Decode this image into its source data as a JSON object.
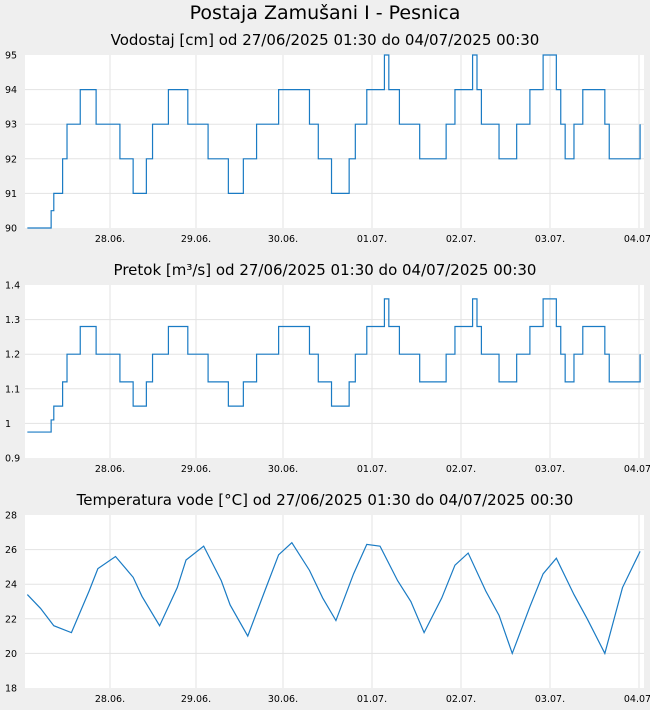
{
  "page": {
    "title": "Postaja Zamušani I - Pesnica"
  },
  "x_ticks": [
    "28.06.",
    "29.06.",
    "30.06.",
    "01.07.",
    "02.07.",
    "03.07.",
    "04.07."
  ],
  "chart_data": [
    {
      "type": "line",
      "title": "Vodostaj [cm] od 27/06/2025 01:30 do 04/07/2025 00:30",
      "xlabel": "",
      "ylabel": "",
      "ylim": [
        90,
        95
      ],
      "y_ticks": [
        "95",
        "94",
        "93",
        "92",
        "91",
        "90"
      ],
      "grid": true,
      "line_color": "#1a7bc4",
      "series": [
        {
          "x": [
            0,
            0.25,
            0.27,
            0.3,
            0.32,
            0.4,
            0.45,
            0.55,
            0.6,
            0.68,
            0.78,
            1.0,
            1.05,
            1.1,
            1.15,
            1.2,
            1.28,
            1.35,
            1.42,
            1.5,
            1.6,
            1.68,
            1.82,
            2.05,
            2.2,
            2.28,
            2.35,
            2.45,
            2.6,
            2.75,
            2.85,
            3.05,
            3.2,
            3.3,
            3.38,
            3.45,
            3.55,
            3.65,
            3.72,
            3.78,
            3.85,
            4.05,
            4.1,
            4.15,
            4.22,
            4.3,
            4.45,
            4.55,
            4.65,
            4.75,
            4.85,
            5.05,
            5.1,
            5.15,
            5.25,
            5.35,
            5.45,
            5.55,
            5.7,
            5.85,
            6.0,
            6.05,
            6.1,
            6.15,
            6.2,
            6.3,
            6.45,
            6.55,
            6.6,
            6.7,
            6.8,
            6.95
          ],
          "y": [
            90,
            90,
            90.5,
            91,
            91,
            92,
            93,
            93,
            94,
            94,
            93,
            93,
            92,
            92,
            92,
            91,
            91,
            92,
            93,
            93,
            94,
            94,
            93,
            92,
            92,
            91,
            91,
            92,
            93,
            93,
            94,
            94,
            93,
            92,
            92,
            91,
            91,
            92,
            93,
            93,
            94,
            95,
            94,
            94,
            93,
            93,
            92,
            92,
            92,
            93,
            94,
            95,
            94,
            93,
            93,
            92,
            92,
            93,
            94,
            95,
            94,
            93,
            92,
            92,
            93,
            94,
            94,
            93,
            92,
            92,
            92,
            93
          ]
        }
      ]
    },
    {
      "type": "line",
      "title": "Pretok [m³/s] od 27/06/2025 01:30 do 04/07/2025 00:30",
      "xlabel": "",
      "ylabel": "",
      "ylim": [
        0.9,
        1.4
      ],
      "y_ticks": [
        "1.4",
        "1.3",
        "1.2",
        "1.1",
        "1",
        "0.9"
      ],
      "grid": true,
      "line_color": "#1a7bc4",
      "series": [
        {
          "x": [
            0,
            0.25,
            0.27,
            0.3,
            0.32,
            0.4,
            0.45,
            0.55,
            0.6,
            0.68,
            0.78,
            1.0,
            1.05,
            1.1,
            1.15,
            1.2,
            1.28,
            1.35,
            1.42,
            1.5,
            1.6,
            1.68,
            1.82,
            2.05,
            2.2,
            2.28,
            2.35,
            2.45,
            2.6,
            2.75,
            2.85,
            3.05,
            3.2,
            3.3,
            3.38,
            3.45,
            3.55,
            3.65,
            3.72,
            3.78,
            3.85,
            4.05,
            4.1,
            4.15,
            4.22,
            4.3,
            4.45,
            4.55,
            4.65,
            4.75,
            4.85,
            5.05,
            5.1,
            5.15,
            5.25,
            5.35,
            5.45,
            5.55,
            5.7,
            5.85,
            6.0,
            6.05,
            6.1,
            6.15,
            6.2,
            6.3,
            6.45,
            6.55,
            6.6,
            6.7,
            6.8,
            6.95
          ],
          "y": [
            0.975,
            0.975,
            1.01,
            1.05,
            1.05,
            1.12,
            1.2,
            1.2,
            1.28,
            1.28,
            1.2,
            1.2,
            1.12,
            1.12,
            1.12,
            1.05,
            1.05,
            1.12,
            1.2,
            1.2,
            1.28,
            1.28,
            1.2,
            1.12,
            1.12,
            1.05,
            1.05,
            1.12,
            1.2,
            1.2,
            1.28,
            1.28,
            1.2,
            1.12,
            1.12,
            1.05,
            1.05,
            1.12,
            1.2,
            1.2,
            1.28,
            1.36,
            1.28,
            1.28,
            1.2,
            1.2,
            1.12,
            1.12,
            1.12,
            1.2,
            1.28,
            1.36,
            1.28,
            1.2,
            1.2,
            1.12,
            1.12,
            1.2,
            1.28,
            1.36,
            1.28,
            1.2,
            1.12,
            1.12,
            1.2,
            1.28,
            1.28,
            1.2,
            1.12,
            1.12,
            1.12,
            1.2
          ]
        }
      ]
    },
    {
      "type": "line",
      "title": "Temperatura vode [°C] od 27/06/2025 01:30 do 04/07/2025 00:30",
      "xlabel": "",
      "ylabel": "",
      "ylim": [
        18,
        28
      ],
      "y_ticks": [
        "28",
        "26",
        "24",
        "22",
        "20",
        "18"
      ],
      "grid": true,
      "line_color": "#1a7bc4",
      "series": [
        {
          "x": [
            0,
            0.15,
            0.3,
            0.5,
            0.7,
            0.8,
            1.0,
            1.2,
            1.3,
            1.5,
            1.7,
            1.8,
            2.0,
            2.2,
            2.3,
            2.5,
            2.7,
            2.85,
            3.0,
            3.2,
            3.35,
            3.5,
            3.7,
            3.85,
            4.0,
            4.2,
            4.35,
            4.5,
            4.7,
            4.85,
            5.0,
            5.2,
            5.35,
            5.5,
            5.7,
            5.85,
            6.0,
            6.2,
            6.35,
            6.55,
            6.75,
            6.95
          ],
          "y": [
            23.4,
            22.6,
            21.6,
            21.2,
            23.6,
            24.9,
            25.6,
            24.4,
            23.3,
            21.6,
            23.8,
            25.4,
            26.2,
            24.2,
            22.8,
            21.0,
            23.7,
            25.7,
            26.4,
            24.8,
            23.2,
            21.9,
            24.6,
            26.3,
            26.2,
            24.2,
            23.0,
            21.2,
            23.2,
            25.1,
            25.8,
            23.6,
            22.2,
            20.0,
            22.7,
            24.6,
            25.5,
            23.4,
            22.0,
            20.0,
            23.8,
            25.9
          ]
        }
      ]
    }
  ]
}
